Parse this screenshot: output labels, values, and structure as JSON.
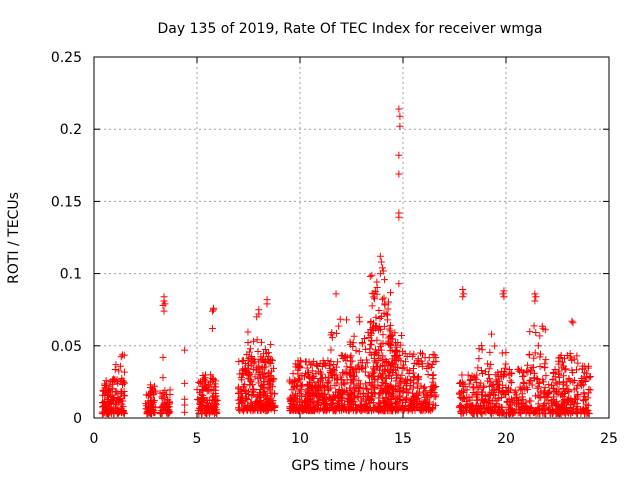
{
  "chart_data": {
    "type": "scatter",
    "title": "Day 135 of 2019, Rate Of TEC Index for receiver wmga",
    "xlabel": "GPS time / hours",
    "ylabel": "ROTI / TECUs",
    "xlim": [
      0,
      25
    ],
    "ylim": [
      0,
      0.25
    ],
    "xticks": [
      0,
      5,
      10,
      15,
      20,
      25
    ],
    "xtick_labels": [
      "0",
      "5",
      "10",
      "15",
      "20",
      "25"
    ],
    "yticks": [
      0,
      0.05,
      0.1,
      0.15,
      0.2,
      0.25
    ],
    "ytick_labels": [
      "0",
      "0.05",
      "0.1",
      "0.15",
      "0.2",
      "0.25"
    ],
    "grid": true,
    "marker": "+",
    "color": "#ff0000",
    "clusters": [
      {
        "x": [
          0.4,
          1.5
        ],
        "y": [
          0.003,
          0.028
        ],
        "n": 140
      },
      {
        "x": [
          1.0,
          1.5
        ],
        "y": [
          0.03,
          0.047
        ],
        "n": 8
      },
      {
        "x": [
          2.5,
          3.0
        ],
        "y": [
          0.003,
          0.025
        ],
        "n": 60
      },
      {
        "x": [
          3.2,
          3.7
        ],
        "y": [
          0.003,
          0.02
        ],
        "n": 50
      },
      {
        "x": [
          5.0,
          6.0
        ],
        "y": [
          0.003,
          0.03
        ],
        "n": 130
      },
      {
        "x": [
          7.0,
          8.8
        ],
        "y": [
          0.005,
          0.04
        ],
        "n": 240
      },
      {
        "x": [
          7.4,
          8.6
        ],
        "y": [
          0.04,
          0.06
        ],
        "n": 30
      },
      {
        "x": [
          9.5,
          11.0
        ],
        "y": [
          0.005,
          0.04
        ],
        "n": 230
      },
      {
        "x": [
          11.0,
          13.0
        ],
        "y": [
          0.005,
          0.04
        ],
        "n": 260
      },
      {
        "x": [
          11.5,
          13.0
        ],
        "y": [
          0.04,
          0.07
        ],
        "n": 25
      },
      {
        "x": [
          13.0,
          15.0
        ],
        "y": [
          0.005,
          0.06
        ],
        "n": 340
      },
      {
        "x": [
          13.4,
          14.4
        ],
        "y": [
          0.06,
          0.11
        ],
        "n": 45
      },
      {
        "x": [
          15.0,
          16.6
        ],
        "y": [
          0.005,
          0.045
        ],
        "n": 180
      },
      {
        "x": [
          17.7,
          20.0
        ],
        "y": [
          0.003,
          0.03
        ],
        "n": 220
      },
      {
        "x": [
          18.5,
          20.0
        ],
        "y": [
          0.03,
          0.06
        ],
        "n": 25
      },
      {
        "x": [
          20.0,
          22.5
        ],
        "y": [
          0.003,
          0.035
        ],
        "n": 220
      },
      {
        "x": [
          21.0,
          22.0
        ],
        "y": [
          0.035,
          0.065
        ],
        "n": 20
      },
      {
        "x": [
          22.5,
          23.5
        ],
        "y": [
          0.003,
          0.045
        ],
        "n": 130
      },
      {
        "x": [
          23.6,
          24.1
        ],
        "y": [
          0.003,
          0.04
        ],
        "n": 50
      }
    ],
    "points": [
      [
        3.4,
        0.084
      ],
      [
        3.4,
        0.081
      ],
      [
        3.45,
        0.079
      ],
      [
        3.35,
        0.078
      ],
      [
        3.4,
        0.074
      ],
      [
        3.35,
        0.042
      ],
      [
        3.35,
        0.028
      ],
      [
        4.4,
        0.047
      ],
      [
        4.4,
        0.024
      ],
      [
        4.4,
        0.013
      ],
      [
        4.4,
        0.009
      ],
      [
        4.4,
        0.004
      ],
      [
        5.8,
        0.076
      ],
      [
        5.8,
        0.075
      ],
      [
        5.75,
        0.074
      ],
      [
        5.75,
        0.062
      ],
      [
        8.0,
        0.075
      ],
      [
        8.0,
        0.072
      ],
      [
        7.9,
        0.07
      ],
      [
        8.4,
        0.082
      ],
      [
        8.4,
        0.079
      ],
      [
        11.75,
        0.086
      ],
      [
        14.8,
        0.214
      ],
      [
        14.85,
        0.209
      ],
      [
        14.85,
        0.202
      ],
      [
        14.8,
        0.182
      ],
      [
        14.8,
        0.169
      ],
      [
        14.8,
        0.142
      ],
      [
        14.8,
        0.139
      ],
      [
        14.8,
        0.093
      ],
      [
        13.9,
        0.112
      ],
      [
        13.95,
        0.108
      ],
      [
        14.0,
        0.104
      ],
      [
        13.9,
        0.1
      ],
      [
        17.9,
        0.089
      ],
      [
        17.95,
        0.086
      ],
      [
        17.9,
        0.084
      ],
      [
        19.9,
        0.088
      ],
      [
        19.85,
        0.086
      ],
      [
        19.9,
        0.084
      ],
      [
        21.4,
        0.086
      ],
      [
        21.45,
        0.084
      ],
      [
        21.4,
        0.081
      ],
      [
        23.2,
        0.067
      ],
      [
        23.25,
        0.066
      ]
    ]
  }
}
